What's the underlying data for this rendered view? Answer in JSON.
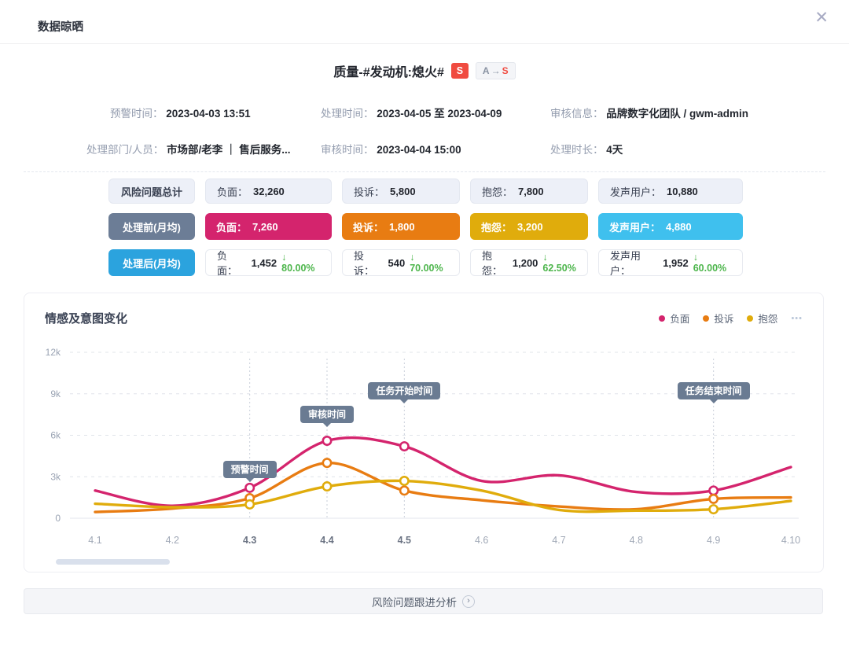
{
  "header": {
    "title": "数据晾晒",
    "close_icon": "✕"
  },
  "dialog_title": {
    "text": "质量-#发动机:熄火#",
    "severity_badge": "S",
    "transition_badge": {
      "from": "A",
      "arrow": "→",
      "to": "S"
    }
  },
  "info": {
    "rows": [
      [
        {
          "label": "预警时间：",
          "value": "2023-04-03 13:51"
        },
        {
          "label": "处理时间：",
          "value": "2023-04-05 至 2023-04-09"
        },
        {
          "label": "审核信息：",
          "value": "品牌数字化团队 / gwm-admin"
        }
      ],
      [
        {
          "label": "处理部门/人员：",
          "value": "市场部/老李 ｜ 售后服务..."
        },
        {
          "label": "审核时间：",
          "value": "2023-04-04 15:00"
        },
        {
          "label": "处理时长：",
          "value": "4天"
        }
      ]
    ]
  },
  "stats": {
    "rows": [
      {
        "name": "风险问题总计",
        "cells": [
          {
            "label": "负面：",
            "value": "32,260"
          },
          {
            "label": "投诉：",
            "value": "5,800"
          },
          {
            "label": "抱怨：",
            "value": "7,800"
          },
          {
            "label": "发声用户：",
            "value": "10,880"
          }
        ]
      },
      {
        "name": "处理前(月均)",
        "cells": [
          {
            "label": "负面：",
            "value": "7,260"
          },
          {
            "label": "投诉：",
            "value": "1,800"
          },
          {
            "label": "抱怨：",
            "value": "3,200"
          },
          {
            "label": "发声用户：",
            "value": "4,880"
          }
        ]
      },
      {
        "name": "处理后(月均)",
        "cells": [
          {
            "label": "负面：",
            "value": "1,452",
            "delta": "↓ 80.00%"
          },
          {
            "label": "投诉：",
            "value": "540",
            "delta": "↓ 70.00%"
          },
          {
            "label": "抱怨：",
            "value": "1,200",
            "delta": "↓ 62.50%"
          },
          {
            "label": "发声用户：",
            "value": "1,952",
            "delta": "↓ 60.00%"
          }
        ]
      }
    ]
  },
  "colors": {
    "negative": "#d4246d",
    "complaint": "#e87c12",
    "grumble": "#e0ac0c",
    "voice_users": "#3fc0ee",
    "before_label": "#6c7d96",
    "after_label": "#2ba3de",
    "delta_green": "#4cb54b",
    "severity_red": "#f04b40",
    "annotation_bg": "#6a7b92"
  },
  "chart_data": {
    "type": "line",
    "title": "情感及意图变化",
    "x": [
      "4.1",
      "4.2",
      "4.3",
      "4.4",
      "4.5",
      "4.6",
      "4.7",
      "4.8",
      "4.9",
      "4.10"
    ],
    "bold_x_indices": [
      2,
      3,
      4
    ],
    "ylim": [
      0,
      12000
    ],
    "yticks": [
      "0",
      "3k",
      "6k",
      "9k",
      "12k"
    ],
    "grid": "dashed-horizontal",
    "legend_position": "top-right",
    "more_icon": "•••",
    "series": [
      {
        "name": "负面",
        "color": "#d4246d",
        "values": [
          2000,
          900,
          2200,
          5600,
          5200,
          2700,
          3100,
          1900,
          2000,
          3700
        ],
        "marker_indices": [
          2,
          3,
          4,
          8
        ]
      },
      {
        "name": "投诉",
        "color": "#e87c12",
        "values": [
          450,
          700,
          1450,
          4000,
          2000,
          1300,
          850,
          650,
          1400,
          1500
        ],
        "marker_indices": [
          2,
          3,
          4,
          8
        ]
      },
      {
        "name": "抱怨",
        "color": "#e0ac0c",
        "values": [
          1050,
          800,
          1000,
          2300,
          2700,
          2000,
          600,
          550,
          650,
          1250
        ],
        "marker_indices": [
          2,
          3,
          4,
          8
        ]
      }
    ],
    "annotations": [
      {
        "label": "预警时间",
        "x_index": 2,
        "tip_y": 240
      },
      {
        "label": "审核时间",
        "x_index": 3,
        "tip_y": 170
      },
      {
        "label": "任务开始时间",
        "x_index": 4,
        "tip_y": 140
      },
      {
        "label": "任务结束时间",
        "x_index": 8,
        "tip_y": 140
      }
    ]
  },
  "footer": {
    "button_label": "风险问题跟进分析",
    "chevron": "›"
  }
}
